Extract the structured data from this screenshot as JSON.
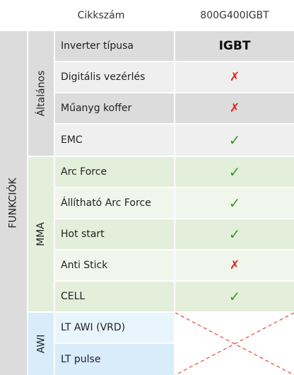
{
  "header": {
    "col_label": "Cikkszám",
    "model": "800G400IGBT"
  },
  "main_group": "FUNKCIÓK",
  "sections": [
    {
      "name": "Általános",
      "rows": [
        {
          "label": "Inverter típusa",
          "value": "IGBT",
          "type": "text"
        },
        {
          "label": "Digitális vezérlés",
          "value": "✗",
          "type": "no"
        },
        {
          "label": "Műanyg koffer",
          "value": "✗",
          "type": "no"
        },
        {
          "label": "EMC",
          "value": "✓",
          "type": "yes"
        }
      ]
    },
    {
      "name": "MMA",
      "rows": [
        {
          "label": "Arc Force",
          "value": "✓",
          "type": "yes"
        },
        {
          "label": "Állítható Arc Force",
          "value": "✓",
          "type": "yes"
        },
        {
          "label": "Hot start",
          "value": "✓",
          "type": "yes"
        },
        {
          "label": "Anti Stick",
          "value": "✗",
          "type": "no"
        },
        {
          "label": "CELL",
          "value": "✓",
          "type": "yes"
        }
      ]
    },
    {
      "name": "AWI",
      "rows": [
        {
          "label": "LT AWI (VRD)",
          "value": "",
          "type": "na"
        },
        {
          "label": "LT pulse",
          "value": "",
          "type": "na"
        }
      ]
    }
  ],
  "colors": {
    "gray_dark": "#dcdcdc",
    "gray_light": "#efefef",
    "green_dark": "#e3eedb",
    "green_light": "#f0f6eb",
    "blue_dark": "#d8ecfa",
    "blue_light": "#e9f5fd",
    "red_x": "#e2231a",
    "green_check": "#3a9a2a"
  }
}
